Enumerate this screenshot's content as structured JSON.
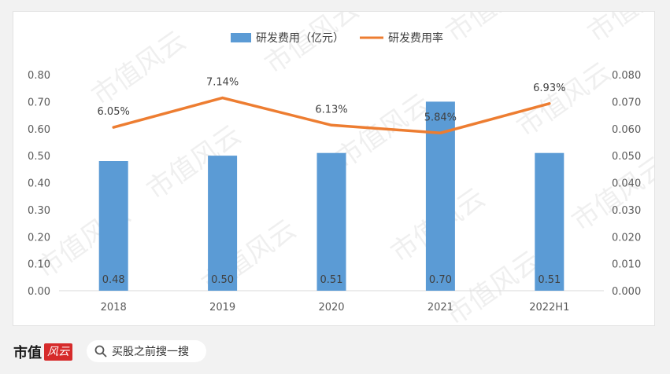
{
  "chart_data": {
    "type": "bar+line",
    "categories": [
      "2018",
      "2019",
      "2020",
      "2021",
      "2022H1"
    ],
    "series": [
      {
        "name": "研发费用（亿元）",
        "type": "bar",
        "axis": "left",
        "values": [
          0.48,
          0.5,
          0.51,
          0.7,
          0.51
        ],
        "labels": [
          "0.48",
          "0.50",
          "0.51",
          "0.70",
          "0.51"
        ],
        "color": "#5b9bd5"
      },
      {
        "name": "研发费用率",
        "type": "line",
        "axis": "right",
        "values": [
          0.0605,
          0.0714,
          0.0613,
          0.0584,
          0.0693
        ],
        "labels": [
          "6.05%",
          "7.14%",
          "6.13%",
          "5.84%",
          "6.93%"
        ],
        "color": "#ed7d31"
      }
    ],
    "y_left": {
      "min": 0,
      "max": 0.8,
      "ticks": [
        "0.00",
        "0.10",
        "0.20",
        "0.30",
        "0.40",
        "0.50",
        "0.60",
        "0.70",
        "0.80"
      ]
    },
    "y_right": {
      "min": 0,
      "max": 0.08,
      "ticks": [
        "0.000",
        "0.010",
        "0.020",
        "0.030",
        "0.040",
        "0.050",
        "0.060",
        "0.070",
        "0.080"
      ]
    },
    "legend_position": "top-center",
    "grid": false
  },
  "watermark": "市值风云",
  "footer": {
    "brand_name": "市值",
    "brand_badge": "风云",
    "search_placeholder": "买股之前搜一搜"
  }
}
